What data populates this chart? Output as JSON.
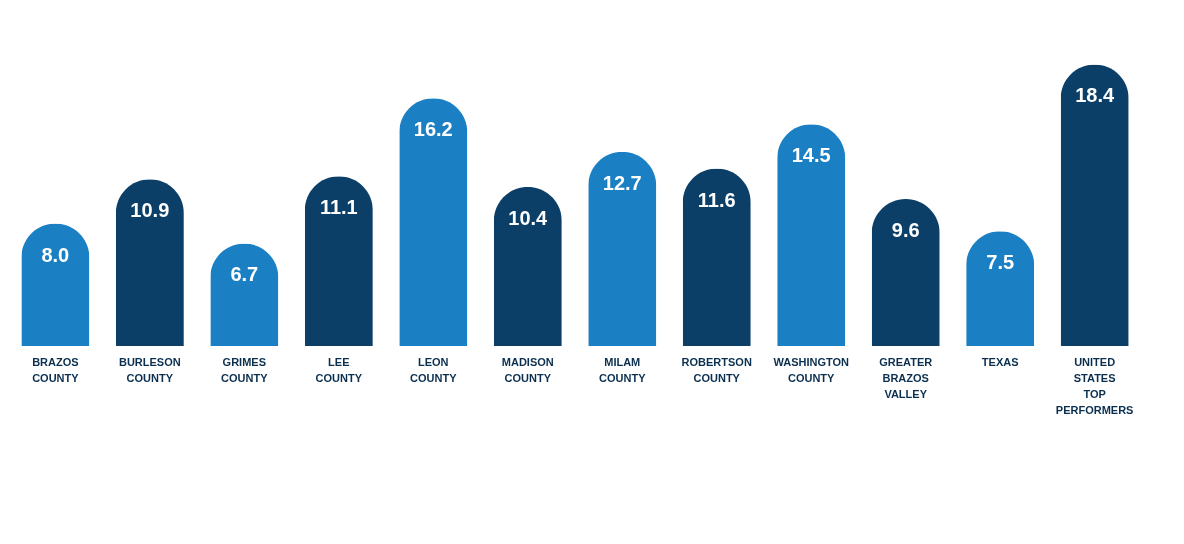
{
  "chart_data": {
    "type": "bar",
    "categories": [
      "BRAZOS COUNTY",
      "BURLESON COUNTY",
      "GRIMES COUNTY",
      "LEE COUNTY",
      "LEON COUNTY",
      "MADISON COUNTY",
      "MILAM COUNTY",
      "ROBERTSON COUNTY",
      "WASHINGTON COUNTY",
      "GREATER BRAZOS VALLEY",
      "TEXAS",
      "UNITED STATES TOP PERFORMERS"
    ],
    "values": [
      8.0,
      10.9,
      6.7,
      11.1,
      16.2,
      10.4,
      12.7,
      11.6,
      14.5,
      9.6,
      7.5,
      18.4
    ],
    "colors": [
      "#1b7fc4",
      "#0b3f68",
      "#1b7fc4",
      "#0b3f68",
      "#1b7fc4",
      "#0b3f68",
      "#1b7fc4",
      "#0b3f68",
      "#1b7fc4",
      "#0b3f68",
      "#1b7fc4",
      "#0b3f68"
    ],
    "value_labels": [
      "8.0",
      "10.9",
      "6.7",
      "11.1",
      "16.2",
      "10.4",
      "12.7",
      "11.6",
      "14.5",
      "9.6",
      "7.5",
      "18.4"
    ],
    "grid": false
  }
}
